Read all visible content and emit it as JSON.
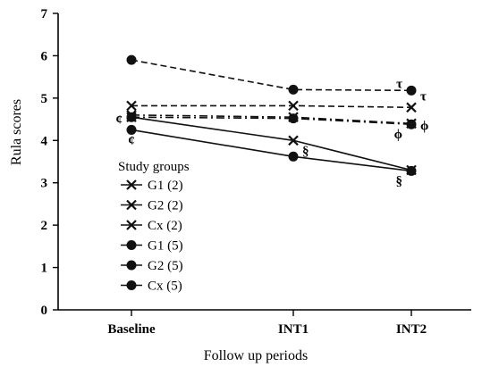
{
  "chart_data": {
    "type": "line",
    "title": "",
    "xlabel": "Follow up periods",
    "ylabel": "Rula scores",
    "categories": [
      "Baseline",
      "INT1",
      "INT2"
    ],
    "ylim": [
      0,
      7
    ],
    "yticks": [
      0,
      1,
      2,
      3,
      4,
      5,
      6,
      7
    ],
    "grid": false,
    "legend": {
      "title": "Study groups",
      "placement": "center-left",
      "entries": [
        "G1 (2)",
        "G2 (2)",
        "Cx (2)",
        "G1 (5)",
        "G2 (5)",
        "Cx (5)"
      ]
    },
    "series": [
      {
        "name": "G1 (2)",
        "marker": "x",
        "dash": "solid",
        "values": [
          4.55,
          4.0,
          3.3
        ]
      },
      {
        "name": "G2 (2)",
        "marker": "x",
        "dash": "dashed",
        "values": [
          4.82,
          4.82,
          4.78
        ]
      },
      {
        "name": "Cx (2)",
        "marker": "x",
        "dash": "dashdot",
        "values": [
          4.6,
          4.55,
          4.4
        ]
      },
      {
        "name": "G1 (5)",
        "marker": "circle",
        "dash": "solid",
        "values": [
          4.25,
          3.62,
          3.28
        ]
      },
      {
        "name": "G2 (5)",
        "marker": "circle",
        "dash": "dashed",
        "values": [
          5.9,
          5.2,
          5.18
        ]
      },
      {
        "name": "Cx (5)",
        "marker": "circle",
        "dash": "dashdot",
        "values": [
          4.55,
          4.52,
          4.38
        ]
      }
    ],
    "annotations": [
      {
        "text": "¢",
        "category": "Baseline",
        "y": 4.5,
        "side": "left"
      },
      {
        "text": "¢",
        "category": "Baseline",
        "y": 4.05,
        "side": "below"
      },
      {
        "text": "§",
        "category": "INT1",
        "y": 3.75,
        "side": "right"
      },
      {
        "text": "§",
        "category": "INT2",
        "y": 3.05,
        "side": "left"
      },
      {
        "text": "τ",
        "category": "INT2",
        "y": 5.35,
        "side": "left"
      },
      {
        "text": "τ",
        "category": "INT2",
        "y": 5.05,
        "side": "right"
      },
      {
        "text": "ϕ",
        "category": "INT2",
        "y": 4.15,
        "side": "left"
      },
      {
        "text": "ϕ",
        "category": "INT2",
        "y": 4.35,
        "side": "right"
      }
    ]
  }
}
